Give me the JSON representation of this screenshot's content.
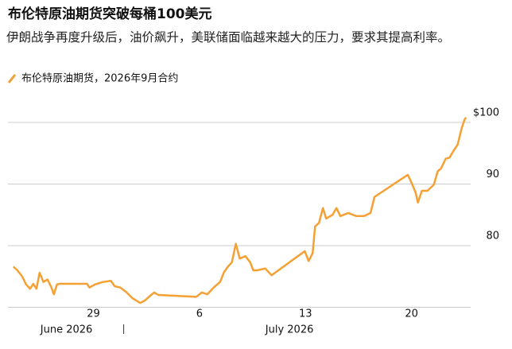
{
  "chart_data": {
    "type": "line",
    "title": "布伦特原油期货突破每桶100美元",
    "subtitle": "伊朗战争再度升级后，油价飙升，美联储面临越来越大的压力，要求其提高利率。",
    "series": [
      {
        "name": "布伦特原油期货，2026年9月合约",
        "color": "#f5a033",
        "x": [
          23.72,
          23.98,
          24.3,
          24.56,
          24.82,
          25.03,
          25.24,
          25.45,
          25.7,
          25.97,
          26.23,
          26.39,
          26.6,
          26.75,
          28.58,
          28.74,
          29.1,
          29.63,
          30.15,
          30.41,
          30.78,
          31.2,
          31.56,
          31.82,
          32.08,
          32.4,
          32.76,
          33.02,
          33.28,
          35.79,
          36.16,
          36.52,
          36.94,
          37.36,
          37.62,
          37.88,
          38.14,
          38.4,
          38.66,
          39.03,
          39.35,
          39.55,
          39.82,
          40.34,
          40.76,
          42.95,
          43.21,
          43.47,
          43.63,
          43.89,
          44.15,
          44.36,
          44.78,
          45.04,
          45.3,
          45.82,
          46.35,
          46.87,
          47.29,
          47.55,
          49.75,
          50.0,
          50.27,
          50.42,
          50.68,
          51.05,
          51.47,
          51.73,
          51.94,
          52.25,
          52.51,
          52.77,
          53.04,
          53.3,
          53.5,
          53.6
        ],
        "values": [
          76.6,
          76.0,
          75.0,
          73.7,
          73.0,
          73.8,
          73.0,
          75.6,
          74.1,
          74.5,
          73.2,
          72.1,
          73.7,
          73.8,
          73.8,
          73.2,
          73.7,
          74.1,
          74.3,
          73.4,
          73.2,
          72.4,
          71.5,
          71.1,
          70.7,
          71.1,
          71.9,
          72.4,
          72.0,
          71.7,
          72.4,
          72.1,
          73.2,
          74.1,
          75.7,
          76.6,
          77.3,
          80.3,
          77.9,
          78.3,
          77.3,
          76.0,
          76.0,
          76.3,
          75.2,
          79.1,
          77.5,
          78.8,
          83.1,
          83.7,
          86.1,
          84.4,
          85.0,
          86.1,
          84.8,
          85.3,
          84.8,
          84.8,
          85.3,
          87.9,
          91.5,
          90.2,
          88.6,
          87.0,
          88.9,
          88.9,
          89.9,
          92.1,
          92.5,
          94.1,
          94.3,
          95.4,
          96.4,
          99.0,
          100.5,
          100.8
        ]
      }
    ],
    "xlim": [
      23.36,
      53.9
    ],
    "xticks": [
      {
        "value": 29,
        "label": "29"
      },
      {
        "value": 36,
        "label": "6"
      },
      {
        "value": 43,
        "label": "13"
      },
      {
        "value": 50,
        "label": "20"
      }
    ],
    "month_labels": [
      {
        "value": 25.5,
        "label": "June 2026"
      },
      {
        "value": 40.35,
        "label": "July 2026"
      }
    ],
    "month_ticks": [
      31
    ],
    "ylim": [
      70,
      102
    ],
    "yticks": [
      80,
      90,
      {
        "value": 100,
        "label": "$100"
      }
    ],
    "grid": true
  }
}
